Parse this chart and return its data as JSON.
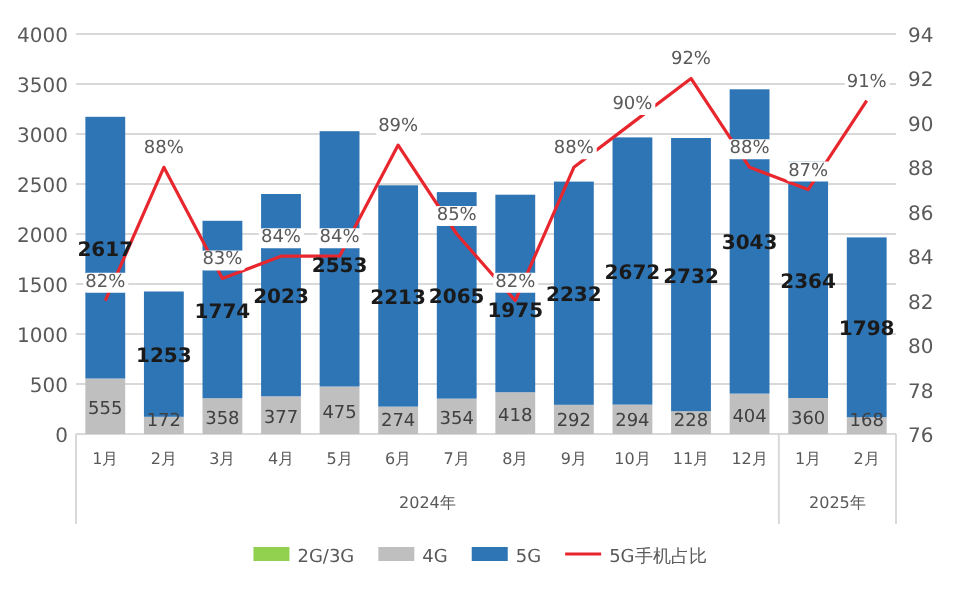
{
  "chart_data": {
    "type": "bar",
    "stacked": true,
    "data_labels": true,
    "categories": [
      "1月",
      "2月",
      "3月",
      "4月",
      "5月",
      "6月",
      "7月",
      "8月",
      "9月",
      "10月",
      "11月",
      "12月",
      "1月",
      "2月"
    ],
    "series": [
      {
        "name": "2G/3G",
        "color": "#92d050",
        "values": [
          null,
          null,
          null,
          null,
          null,
          null,
          null,
          null,
          null,
          null,
          null,
          null,
          null,
          null
        ]
      },
      {
        "name": "4G",
        "color": "#bfbfbf",
        "values": [
          555,
          172,
          358,
          377,
          475,
          274,
          354,
          418,
          292,
          294,
          228,
          404,
          360,
          168
        ]
      },
      {
        "name": "5G",
        "color": "#2e75b6",
        "values": [
          2617,
          1253,
          1774,
          2023,
          2553,
          2213,
          2065,
          1975,
          2232,
          2672,
          2732,
          3043,
          2364,
          1798
        ]
      },
      {
        "name": "5G手机占比",
        "type": "line",
        "axis": "y2",
        "color": "#e8262d",
        "values": [
          82,
          88,
          83,
          84,
          84,
          89,
          85,
          82,
          88,
          90,
          92,
          88,
          87,
          91
        ],
        "value_labels": [
          "82%",
          "88%",
          "83%",
          "84%",
          "84%",
          "89%",
          "85%",
          "82%",
          "88%",
          "90%",
          "92%",
          "88%",
          "87%",
          "91%"
        ]
      }
    ],
    "ylim": [
      0,
      4000
    ],
    "yticks": [
      0,
      500,
      1000,
      1500,
      2000,
      2500,
      3000,
      3500,
      4000
    ],
    "y2lim": [
      76,
      94
    ],
    "y2ticks": [
      76,
      78,
      80,
      82,
      84,
      86,
      88,
      90,
      92,
      94
    ],
    "grid": "y",
    "legend": "bottom",
    "annotations": [
      "2024年",
      "2025年"
    ]
  }
}
